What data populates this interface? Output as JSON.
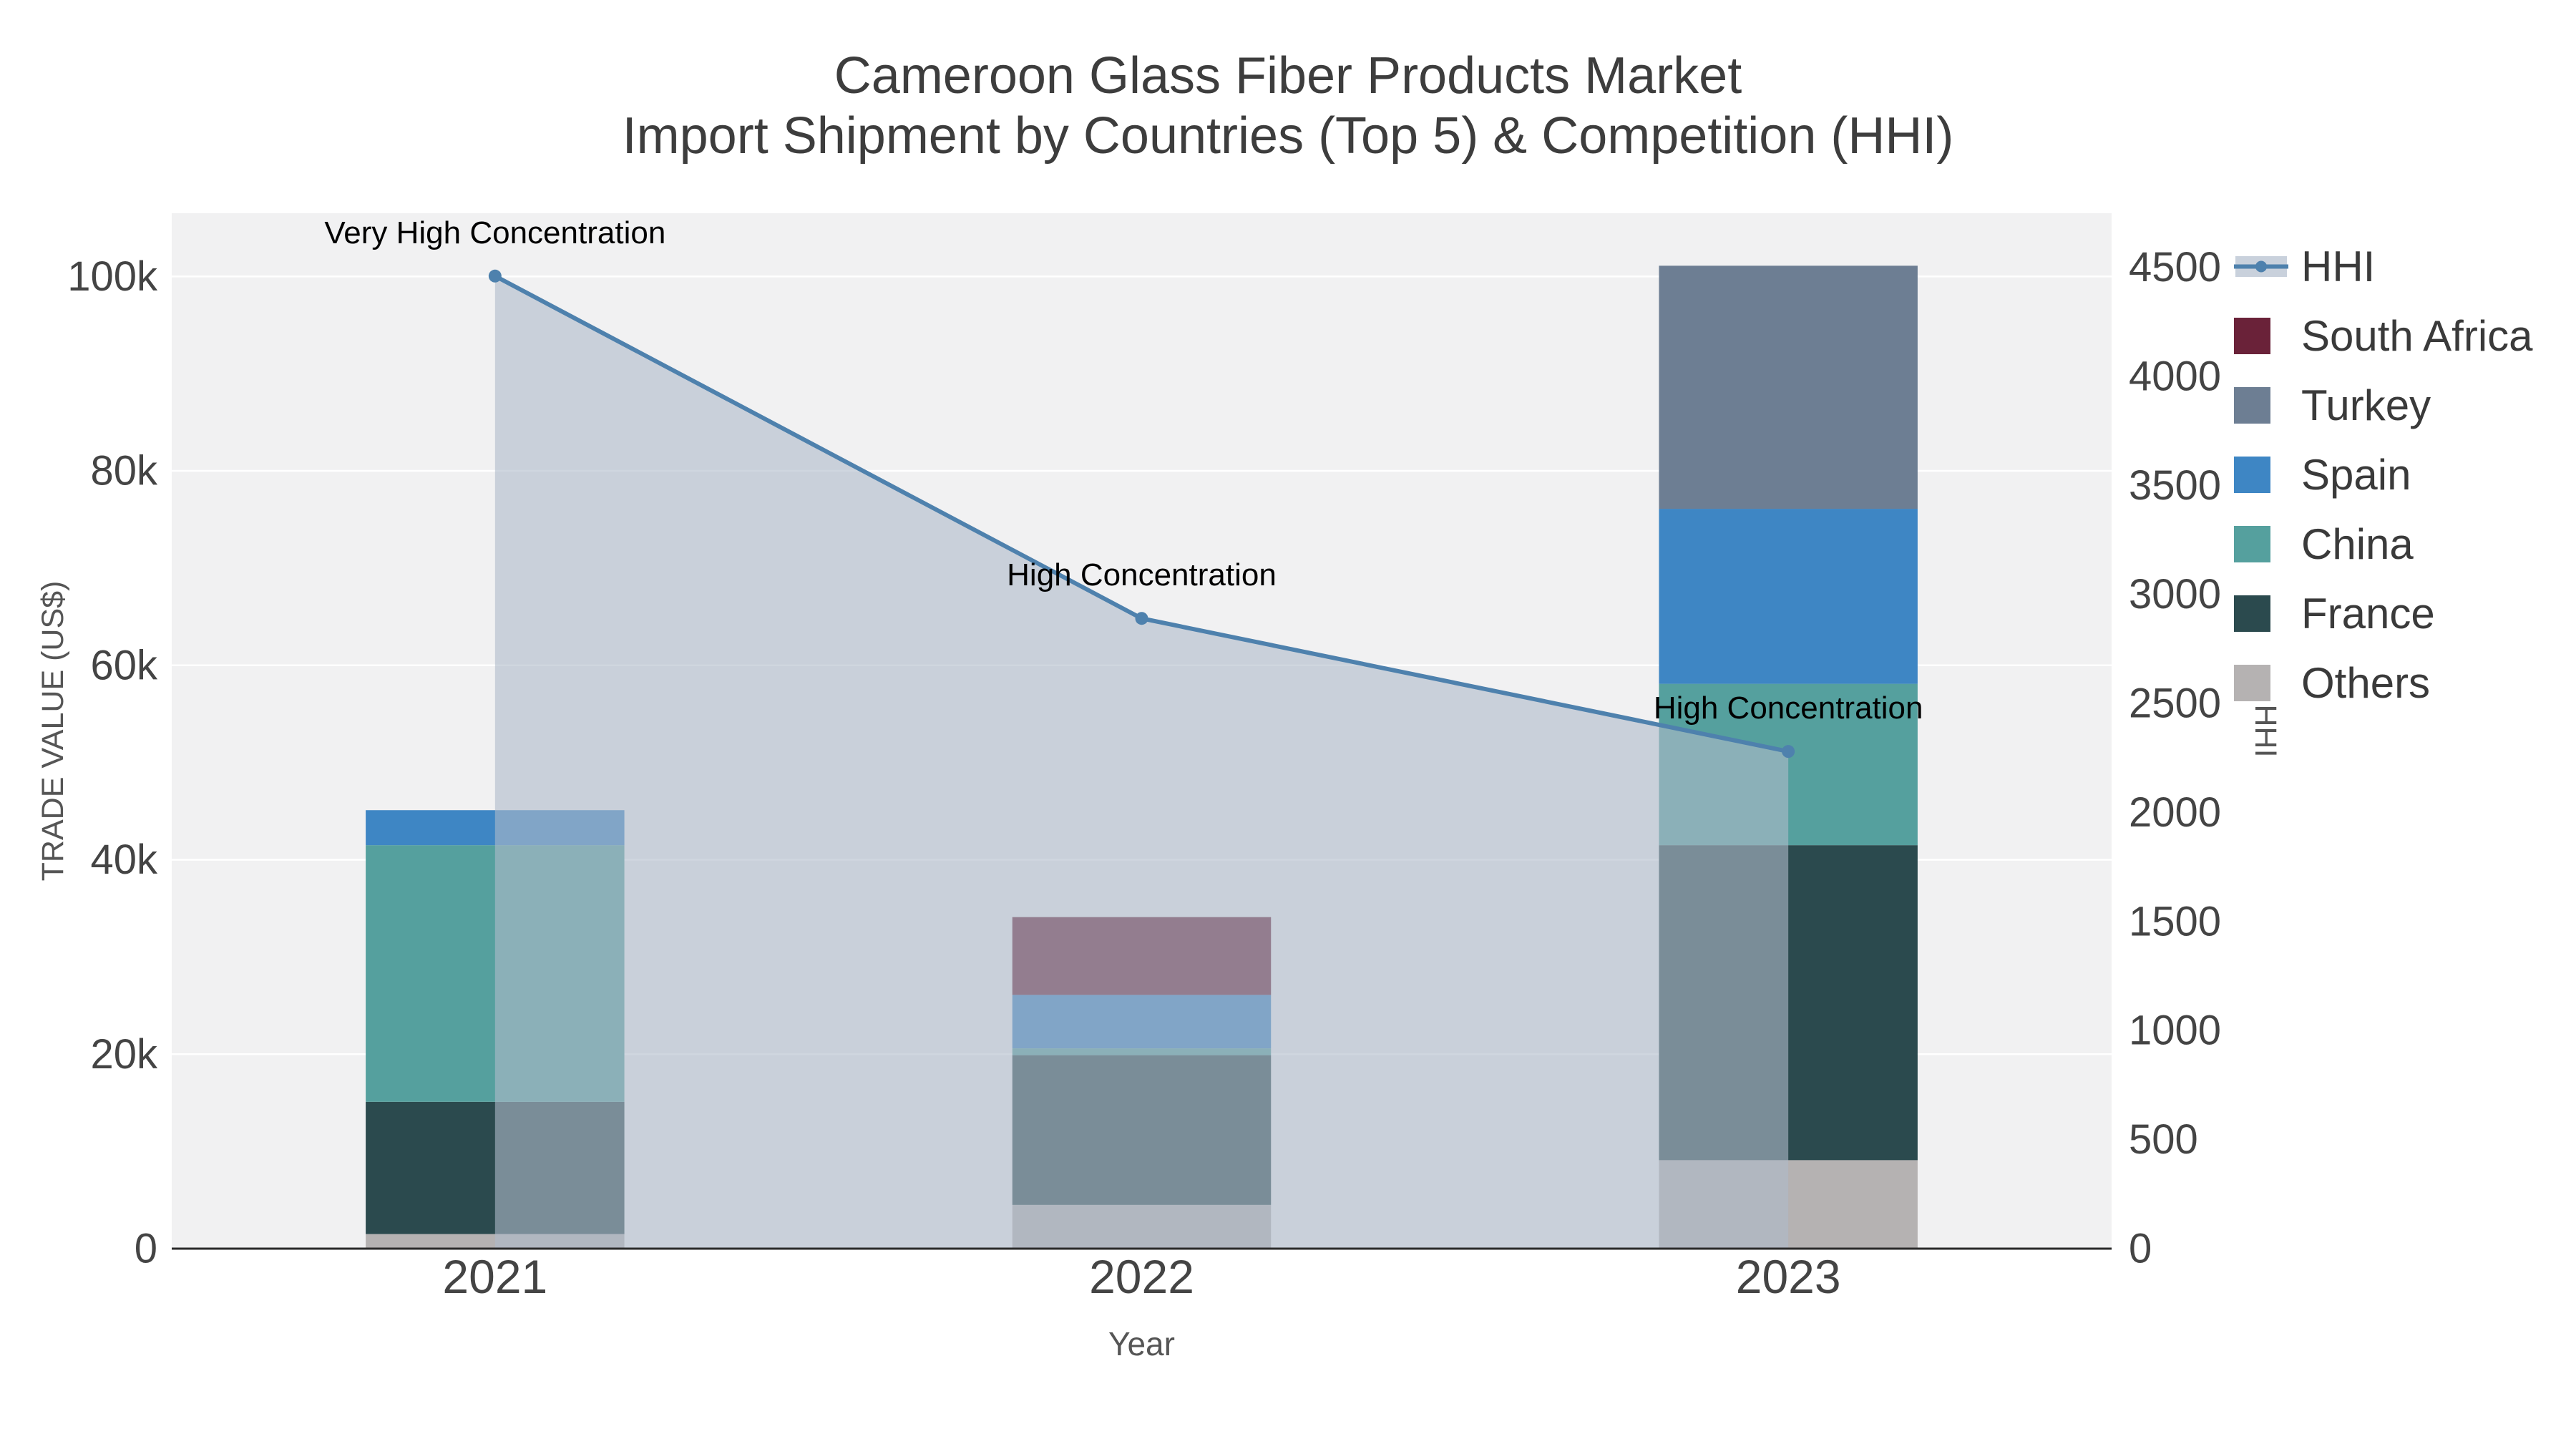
{
  "title": {
    "line1": "Cameroon Glass Fiber Products Market",
    "line2": "Import Shipment by Countries (Top 5) & Competition (HHI)"
  },
  "chart_data": {
    "type": "combo-stacked-bar-line",
    "categories": [
      "2021",
      "2022",
      "2023"
    ],
    "bar_series": [
      {
        "name": "Others",
        "color": "#b5b2b2",
        "values": [
          1500,
          4500,
          9100
        ]
      },
      {
        "name": "France",
        "color": "#2b4a4e",
        "values": [
          13600,
          15400,
          32400
        ]
      },
      {
        "name": "China",
        "color": "#55a09e",
        "values": [
          26400,
          700,
          16600
        ]
      },
      {
        "name": "Spain",
        "color": "#3e86c4",
        "values": [
          3600,
          5500,
          18000
        ]
      },
      {
        "name": "Turkey",
        "color": "#6d7e93",
        "values": [
          0,
          0,
          25000
        ]
      },
      {
        "name": "South Africa",
        "color": "#6a2239",
        "values": [
          0,
          8000,
          0
        ]
      }
    ],
    "line_series": {
      "name": "HHI",
      "color": "#4e81ad",
      "area_fill": "#afbac9",
      "area_opacity": 0.6,
      "values": [
        4460,
        2890,
        2280
      ]
    },
    "left_axis": {
      "label": "TRADE VALUE (US$)",
      "tick_values": [
        0,
        20000,
        40000,
        60000,
        80000,
        100000
      ],
      "tick_labels": [
        "0",
        "20k",
        "40k",
        "60k",
        "80k",
        "100k"
      ],
      "scale_max": 106500
    },
    "right_axis": {
      "label": "HHI",
      "tick_values": [
        0,
        500,
        1000,
        1500,
        2000,
        2500,
        3000,
        3500,
        4000,
        4500
      ],
      "tick_labels": [
        "0",
        "500",
        "1000",
        "1500",
        "2000",
        "2500",
        "3000",
        "3500",
        "4000",
        "4500"
      ],
      "scale_max": 4748
    },
    "x_axis": {
      "label": "Year"
    },
    "annotations": [
      {
        "text": "Very High Concentration",
        "category_index": 0
      },
      {
        "text": "High Concentration",
        "category_index": 1
      },
      {
        "text": "High Concentration",
        "category_index": 2
      }
    ],
    "legend": [
      {
        "name": "HHI",
        "type": "line",
        "color": "#4e81ad"
      },
      {
        "name": "South Africa",
        "type": "swatch",
        "color": "#6a2239"
      },
      {
        "name": "Turkey",
        "type": "swatch",
        "color": "#6d7e93"
      },
      {
        "name": "Spain",
        "type": "swatch",
        "color": "#3e86c4"
      },
      {
        "name": "China",
        "type": "swatch",
        "color": "#55a09e"
      },
      {
        "name": "France",
        "type": "swatch",
        "color": "#2b4a4e"
      },
      {
        "name": "Others",
        "type": "swatch",
        "color": "#b5b2b2"
      }
    ],
    "style": {
      "plot_bg": "#f1f1f2",
      "grid_color": "#ffffff",
      "spine_color": "#2a2a2a",
      "tick_color": "#444444",
      "axis_title_color": "#555555",
      "annotation_color": "#000000"
    }
  }
}
